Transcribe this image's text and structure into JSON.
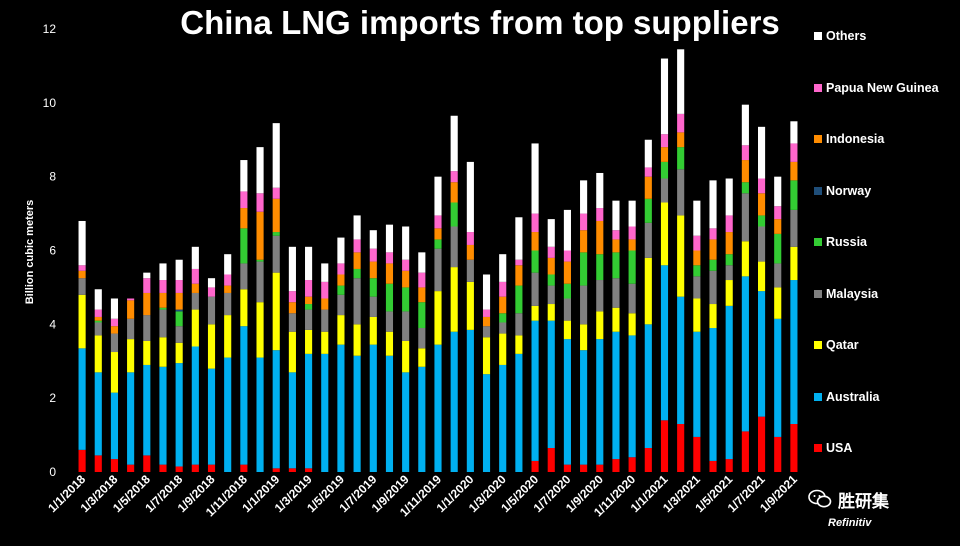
{
  "chart_data": {
    "type": "bar",
    "stacked": true,
    "title": "China LNG imports from top suppliers",
    "xlabel": "",
    "ylabel": "Billion cubic meters",
    "ylim": [
      0,
      12
    ],
    "yticks": [
      0,
      2,
      4,
      6,
      8,
      10,
      12
    ],
    "grid": false,
    "legend_position": "right",
    "source": "Refinitiv",
    "watermark": "胜研集",
    "tick_labels": [
      "1/1/2018",
      "1/3/2018",
      "1/5/2018",
      "1/7/2018",
      "1/9/2018",
      "1/11/2018",
      "1/1/2019",
      "1/3/2019",
      "1/5/2019",
      "1/7/2019",
      "1/9/2019",
      "1/11/2019",
      "1/1/2020",
      "1/3/2020",
      "1/5/2020",
      "1/7/2020",
      "1/9/2020",
      "1/11/2020",
      "1/1/2021",
      "1/3/2021",
      "1/5/2021",
      "1/7/2021",
      "1/9/2021"
    ],
    "categories": [
      "2018-01",
      "2018-02",
      "2018-03",
      "2018-04",
      "2018-05",
      "2018-06",
      "2018-07",
      "2018-08",
      "2018-09",
      "2018-10",
      "2018-11",
      "2018-12",
      "2019-01",
      "2019-02",
      "2019-03",
      "2019-04",
      "2019-05",
      "2019-06",
      "2019-07",
      "2019-08",
      "2019-09",
      "2019-10",
      "2019-11",
      "2019-12",
      "2020-01",
      "2020-02",
      "2020-03",
      "2020-04",
      "2020-05",
      "2020-06",
      "2020-07",
      "2020-08",
      "2020-09",
      "2020-10",
      "2020-11",
      "2020-12",
      "2021-01",
      "2021-02",
      "2021-03",
      "2021-04",
      "2021-05",
      "2021-06",
      "2021-07",
      "2021-08",
      "2021-09"
    ],
    "series": [
      {
        "name": "USA",
        "color": "#ff0000",
        "values": [
          0.6,
          0.45,
          0.35,
          0.2,
          0.45,
          0.2,
          0.15,
          0.2,
          0.2,
          0.0,
          0.2,
          0.0,
          0.1,
          0.1,
          0.1,
          0.0,
          0.0,
          0.0,
          0.0,
          0.0,
          0.0,
          0.0,
          0.0,
          0.0,
          0.0,
          0.0,
          0.0,
          0.0,
          0.3,
          0.65,
          0.2,
          0.2,
          0.2,
          0.35,
          0.4,
          0.65,
          1.4,
          1.3,
          0.95,
          0.3,
          0.35,
          1.1,
          1.5,
          0.95,
          1.3
        ]
      },
      {
        "name": "Australia",
        "color": "#00b0f0",
        "values": [
          2.75,
          2.25,
          1.8,
          2.5,
          2.45,
          2.65,
          2.8,
          3.2,
          2.6,
          3.1,
          3.75,
          3.1,
          3.2,
          2.6,
          3.1,
          3.2,
          3.45,
          3.15,
          3.45,
          3.15,
          2.7,
          2.85,
          3.45,
          3.8,
          3.85,
          2.65,
          2.9,
          3.2,
          3.8,
          3.45,
          3.4,
          3.1,
          3.4,
          3.45,
          3.3,
          3.35,
          4.2,
          3.45,
          2.85,
          3.6,
          4.15,
          4.2,
          3.4,
          3.2,
          3.9
        ]
      },
      {
        "name": "Qatar",
        "color": "#ffff00",
        "values": [
          1.45,
          1.0,
          1.1,
          0.9,
          0.65,
          0.8,
          0.55,
          1.0,
          1.2,
          1.15,
          1.0,
          1.5,
          2.1,
          1.1,
          0.65,
          0.6,
          0.8,
          0.85,
          0.75,
          0.65,
          0.85,
          0.5,
          1.45,
          1.75,
          1.3,
          1.0,
          0.85,
          0.5,
          0.4,
          0.45,
          0.5,
          0.7,
          0.75,
          0.65,
          0.6,
          1.8,
          1.7,
          2.2,
          0.9,
          0.65,
          0.7,
          0.95,
          0.8,
          0.85,
          0.9
        ]
      },
      {
        "name": "Malaysia",
        "color": "#808080",
        "values": [
          0.45,
          0.35,
          0.5,
          0.55,
          0.7,
          0.75,
          0.45,
          0.45,
          0.75,
          0.6,
          0.7,
          1.1,
          1.0,
          0.5,
          0.55,
          0.6,
          0.55,
          1.25,
          0.55,
          0.55,
          0.8,
          0.55,
          1.15,
          1.1,
          0.6,
          0.3,
          0.3,
          0.6,
          0.9,
          0.5,
          0.6,
          1.05,
          0.85,
          0.8,
          0.8,
          0.95,
          0.65,
          1.25,
          0.6,
          0.9,
          0.4,
          1.3,
          0.95,
          0.65,
          1.0
        ]
      },
      {
        "name": "Russia",
        "color": "#33cc33",
        "values": [
          0.0,
          0.05,
          0.0,
          0.0,
          0.0,
          0.05,
          0.4,
          0.0,
          0.0,
          0.0,
          0.95,
          0.05,
          0.1,
          0.0,
          0.15,
          0.0,
          0.25,
          0.25,
          0.5,
          0.75,
          0.65,
          0.7,
          0.25,
          0.65,
          0.0,
          0.0,
          0.25,
          0.75,
          0.6,
          0.3,
          0.4,
          0.9,
          0.7,
          0.7,
          0.9,
          0.65,
          0.45,
          0.6,
          0.3,
          0.3,
          0.3,
          0.3,
          0.3,
          0.8,
          0.8
        ]
      },
      {
        "name": "Norway",
        "color": "#1f4e79",
        "values": [
          0.0,
          0.0,
          0.0,
          0.0,
          0.0,
          0.0,
          0.05,
          0.0,
          0.0,
          0.0,
          0.0,
          0.0,
          0.0,
          0.0,
          0.0,
          0.0,
          0.0,
          0.0,
          0.0,
          0.0,
          0.0,
          0.0,
          0.0,
          0.0,
          0.0,
          0.0,
          0.0,
          0.0,
          0.0,
          0.0,
          0.0,
          0.0,
          0.0,
          0.0,
          0.0,
          0.0,
          0.0,
          0.0,
          0.0,
          0.0,
          0.0,
          0.0,
          0.0,
          0.0,
          0.0
        ]
      },
      {
        "name": "Indonesia",
        "color": "#ff8c00",
        "values": [
          0.2,
          0.1,
          0.2,
          0.5,
          0.6,
          0.4,
          0.45,
          0.25,
          0.0,
          0.2,
          0.55,
          1.3,
          0.9,
          0.3,
          0.2,
          0.3,
          0.3,
          0.45,
          0.45,
          0.55,
          0.45,
          0.4,
          0.3,
          0.55,
          0.4,
          0.25,
          0.45,
          0.55,
          0.5,
          0.45,
          0.6,
          0.6,
          0.9,
          0.35,
          0.3,
          0.6,
          0.4,
          0.4,
          0.4,
          0.55,
          0.6,
          0.6,
          0.6,
          0.4,
          0.5
        ]
      },
      {
        "name": "Papua New Guinea",
        "color": "#ff66cc",
        "values": [
          0.15,
          0.2,
          0.2,
          0.05,
          0.4,
          0.35,
          0.35,
          0.4,
          0.25,
          0.3,
          0.45,
          0.5,
          0.3,
          0.3,
          0.45,
          0.45,
          0.3,
          0.35,
          0.35,
          0.3,
          0.3,
          0.4,
          0.35,
          0.3,
          0.35,
          0.2,
          0.4,
          0.15,
          0.5,
          0.3,
          0.3,
          0.45,
          0.35,
          0.25,
          0.35,
          0.25,
          0.35,
          0.5,
          0.4,
          0.3,
          0.45,
          0.4,
          0.4,
          0.35,
          0.5
        ]
      },
      {
        "name": "Others",
        "color": "#ffffff",
        "values": [
          1.2,
          0.55,
          0.55,
          0.0,
          0.15,
          0.45,
          0.55,
          0.6,
          0.25,
          0.55,
          0.85,
          1.25,
          1.75,
          1.2,
          0.9,
          0.5,
          0.7,
          0.65,
          0.5,
          0.75,
          0.9,
          0.55,
          1.05,
          1.5,
          1.9,
          0.95,
          0.75,
          1.15,
          1.9,
          0.75,
          1.1,
          0.9,
          0.95,
          0.8,
          0.7,
          0.75,
          2.05,
          1.75,
          0.95,
          1.3,
          1.0,
          1.1,
          1.4,
          0.8,
          0.6
        ]
      }
    ]
  }
}
